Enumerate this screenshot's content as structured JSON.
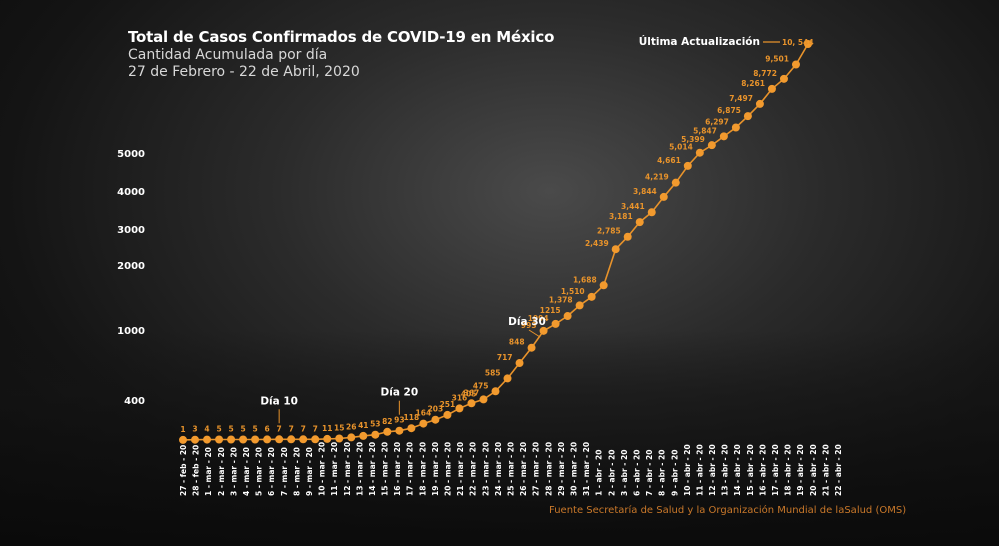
{
  "header": {
    "title": "Total de Casos Confirmados de COVID-19 en México",
    "subtitle": "Cantidad Acumulada por día",
    "date_range": "27 de Febrero - 22 de Abril, 2020"
  },
  "source": "Fuente Secretaría de Salud y la Organización Mundial de laSalud (OMS)",
  "colors": {
    "line": "#e8932b",
    "point": "#f29a2e",
    "label": "#e8932b",
    "text": "#ffffff"
  },
  "chart_data": {
    "type": "line",
    "title": "Total de Casos Confirmados de COVID-19 en México",
    "subtitle": "Cantidad Acumulada por día",
    "xlabel": "",
    "ylabel": "",
    "y_ticks": [
      400,
      1000,
      2000,
      3000,
      4000,
      5000
    ],
    "y_scale": "nonlinear",
    "grid": false,
    "legend": "none",
    "categories": [
      "27 - feb - 20",
      "28 - feb - 20",
      "1 - mar - 20",
      "2 - mar - 20",
      "3 - mar - 20",
      "4 - mar - 20",
      "5 - mar - 20",
      "6 - mar - 20",
      "7 - mar - 20",
      "8 - mar - 20",
      "9 - mar - 20",
      "10 - mar - 20",
      "11 - mar - 20",
      "12 - mar - 20",
      "13 - mar - 20",
      "14 - mar - 20",
      "15 - mar - 20",
      "16 - mar - 20",
      "17 - mar - 20",
      "18 - mar - 20",
      "19 - mar - 20",
      "20 - mar - 20",
      "21 - mar - 20",
      "22 - mar - 20",
      "23 - mar - 20",
      "24 - mar - 20",
      "25 - mar - 20",
      "26 - mar - 20",
      "27 - mar - 20",
      "28 - mar - 20",
      "29 - mar - 20",
      "30 - mar - 20",
      "31 - mar - 20",
      "1 - abr - 20",
      "2 - abr - 20",
      "3 - abr - 20",
      "6 - abr - 20",
      "7 - abr - 20",
      "8 - abr - 20",
      "9 - abr - 20",
      "10 - abr - 20",
      "11 - abr - 20",
      "12 - abr - 20",
      "13 - abr - 20",
      "14 - abr - 20",
      "15 - abr - 20",
      "16 - abr - 20",
      "17 - abr - 20",
      "18 - abr - 20",
      "19 - abr - 20",
      "20 - abr - 20",
      "21 - abr - 20",
      "22 - abr - 20"
    ],
    "values": [
      1,
      3,
      4,
      5,
      5,
      5,
      5,
      6,
      7,
      7,
      7,
      7,
      11,
      15,
      26,
      41,
      53,
      82,
      93,
      118,
      164,
      203,
      251,
      316,
      367,
      405,
      475,
      585,
      717,
      848,
      993,
      1094,
      1215,
      1378,
      1510,
      1688,
      2439,
      2785,
      3181,
      3441,
      3844,
      4219,
      4661,
      5014,
      5399,
      5847,
      6297,
      6875,
      7497,
      8261,
      8772,
      9501,
      10544
    ],
    "value_labels": [
      "1",
      "3",
      "4",
      "5",
      "5",
      "5",
      "5",
      "6",
      "7",
      "7",
      "7",
      "7",
      "11",
      "15",
      "26",
      "41",
      "53",
      "82",
      "93",
      "118",
      "164",
      "203",
      "251",
      "316",
      "367",
      "405",
      "475",
      "585",
      "717",
      "848",
      "993",
      "1094",
      "1215",
      "1,378",
      "1,510",
      "1,688",
      "2,439",
      "2,785",
      "3,181",
      "3,441",
      "3,844",
      "4,219",
      "4,661",
      "5,014",
      "5,399",
      "5,847",
      "6,297",
      "6,875",
      "7,497",
      "8,261",
      "8,772",
      "9,501",
      "10, 544"
    ],
    "annotations": [
      {
        "text": "Día 10",
        "point_index": 8
      },
      {
        "text": "Día 20",
        "point_index": 18
      },
      {
        "text": "Día 30",
        "point_index": 30
      },
      {
        "text": "Última Actualización",
        "point_index": 52
      }
    ]
  }
}
